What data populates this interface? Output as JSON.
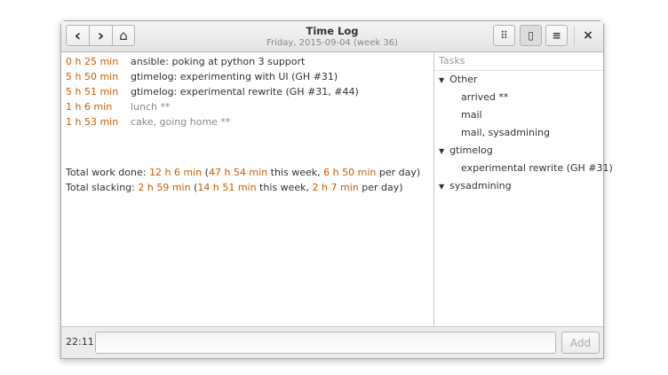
{
  "window": {
    "title": "Time Log",
    "subtitle": "Friday, 2015-09-04 (week 36)"
  },
  "header": {
    "back": "‹",
    "forward": "›",
    "home": "⌂",
    "grid": "⠿",
    "book": "▯",
    "menu": "≡",
    "close": "×"
  },
  "entries": [
    {
      "duration": "0 h 25 min",
      "task": "ansible: poking at python 3 support",
      "slacking": false
    },
    {
      "duration": "5 h 50 min",
      "task": "gtimelog: experimenting with UI (GH #31)",
      "slacking": false
    },
    {
      "duration": "5 h 51 min",
      "task": "gtimelog: experimental rewrite (GH #31, #44)",
      "slacking": false
    },
    {
      "duration": "1 h 6 min",
      "task": "lunch **",
      "slacking": true
    },
    {
      "duration": "1 h 53 min",
      "task": "cake, going home **",
      "slacking": true
    }
  ],
  "totals": {
    "work": {
      "label": "Total work done: ",
      "total": "12 h 6 min",
      "open": " (",
      "week": "47 h 54 min",
      "week_label": " this week, ",
      "per_day": "6 h 50 min",
      "per_day_label": " per day)"
    },
    "slack": {
      "label": "Total slacking: ",
      "total": "2 h 59 min",
      "open": " (",
      "week": "14 h 51 min",
      "week_label": " this week, ",
      "per_day": "2 h 7 min",
      "per_day_label": " per day)"
    }
  },
  "tasks": {
    "header": "Tasks",
    "groups": [
      {
        "name": "Other",
        "items": [
          "arrived **",
          "mail",
          "mail, sysadmining"
        ]
      },
      {
        "name": "gtimelog",
        "items": [
          "experimental rewrite (GH #31)"
        ]
      },
      {
        "name": "sysadmining",
        "items": []
      }
    ]
  },
  "footer": {
    "time": "22:11",
    "input_value": "",
    "add": "Add"
  },
  "colors": {
    "accent": "#ce5c00"
  }
}
